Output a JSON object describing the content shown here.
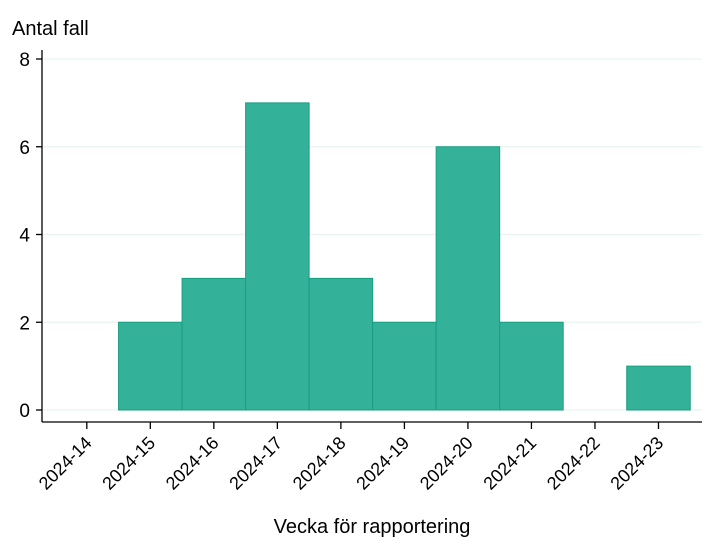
{
  "chart_data": {
    "type": "bar",
    "ylabel": "Antal fall",
    "xlabel": "Vecka för rapportering",
    "categories": [
      "2024-14",
      "2024-15",
      "2024-16",
      "2024-17",
      "2024-18",
      "2024-19",
      "2024-20",
      "2024-21",
      "2024-22",
      "2024-23"
    ],
    "values": [
      0,
      2,
      3,
      7,
      3,
      2,
      6,
      2,
      0,
      1
    ],
    "ylim": [
      0,
      8
    ],
    "yticks": [
      0,
      2,
      4,
      6,
      8
    ],
    "grid": true,
    "legend": "none",
    "colors": {
      "bar": "#33b199",
      "bar_edge": "#1a9e80",
      "grid": "#eaf2f2",
      "axis": "#000000"
    }
  }
}
